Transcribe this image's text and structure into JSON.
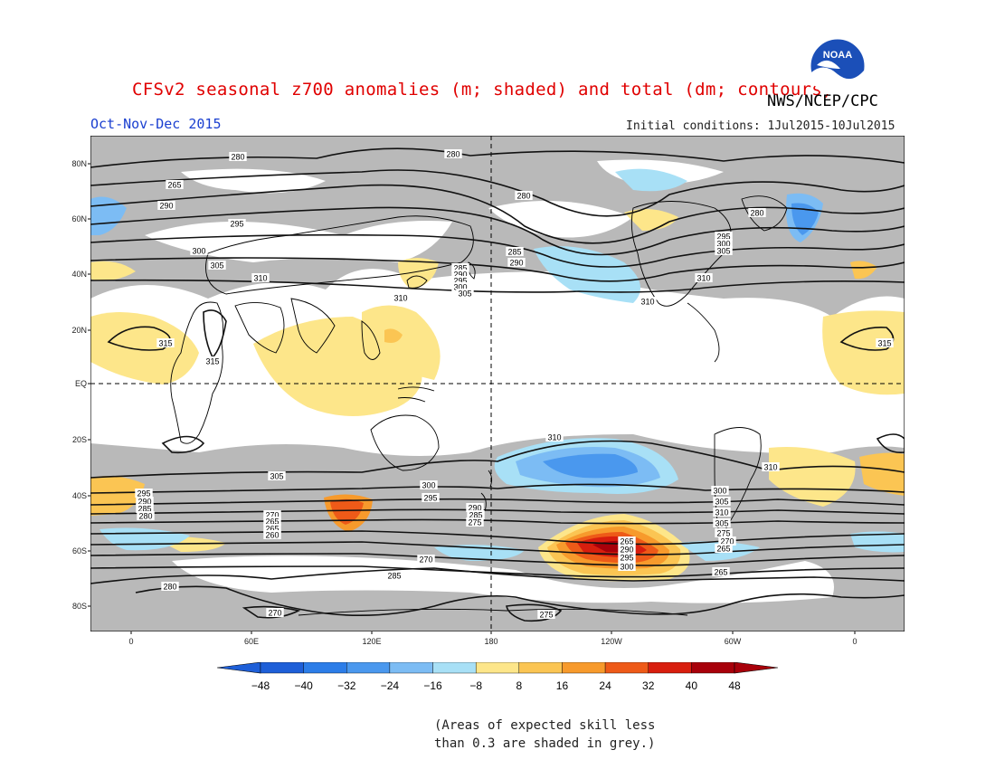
{
  "title": "CFSv2 seasonal z700 anomalies (m; shaded) and total (dm; contours)",
  "agency": "NWS/NCEP/CPC",
  "logo_text": "NOAA",
  "season": "Oct-Nov-Dec 2015",
  "initial_conditions": "Initial conditions: 1Jul2015-10Jul2015",
  "lat_labels": [
    "80N",
    "60N",
    "40N",
    "20N",
    "EQ",
    "20S",
    "40S",
    "60S",
    "80S"
  ],
  "lon_labels": [
    "0",
    "60E",
    "120E",
    "180",
    "120W",
    "60W",
    "0"
  ],
  "contour_labels": [
    "280",
    "280",
    "280",
    "280",
    "265",
    "290",
    "295",
    "300",
    "305",
    "310",
    "315",
    "315",
    "315",
    "285",
    "290",
    "295",
    "300",
    "305",
    "310",
    "285",
    "290",
    "295",
    "300",
    "305",
    "310",
    "310",
    "310",
    "310",
    "305",
    "300",
    "295",
    "290",
    "285",
    "275",
    "270",
    "265",
    "265",
    "260",
    "270",
    "285",
    "280",
    "275",
    "270",
    "265",
    "290",
    "295",
    "300",
    "305",
    "310",
    "305",
    "300",
    "295",
    "290",
    "285",
    "280",
    "275",
    "270",
    "265",
    "265"
  ],
  "colorbar": {
    "levels": [
      "-48",
      "-40",
      "-32",
      "-24",
      "-16",
      "-8",
      "8",
      "16",
      "24",
      "32",
      "40",
      "48"
    ],
    "colors": [
      "#1e5fd8",
      "#2c7de8",
      "#4a98ee",
      "#7cbcf4",
      "#a8e0f6",
      "#ffffff",
      "#fde68a",
      "#fbc553",
      "#f79a2c",
      "#ee5a18",
      "#d81e0e",
      "#a8000a",
      "#1e5fd8",
      "#a8000a"
    ]
  },
  "colors": {
    "skill_mask": "#b9b9b9",
    "title": "#e00000",
    "season": "#1a3fd0"
  },
  "note_line1": "(Areas of expected skill less",
  "note_line2": "than 0.3 are shaded in grey.)"
}
